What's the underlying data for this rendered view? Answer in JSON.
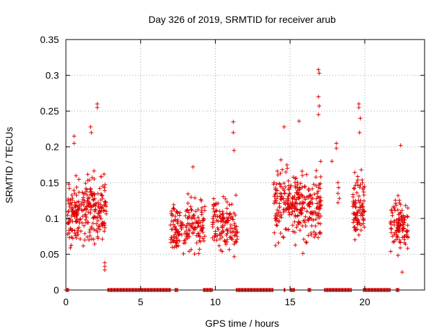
{
  "chart_data": {
    "type": "scatter",
    "title": "Day 326 of 2019, SRMTID for receiver arub",
    "xlabel": "GPS time / hours",
    "ylabel": "SRMTID / TECUs",
    "xlim": [
      0,
      24
    ],
    "ylim": [
      0,
      0.35
    ],
    "x_ticks": [
      0,
      5,
      10,
      15,
      20
    ],
    "x_tick_labels": [
      "0",
      "5",
      "10",
      "15",
      "20"
    ],
    "y_ticks": [
      0,
      0.05,
      0.1,
      0.15,
      0.2,
      0.25,
      0.3,
      0.35
    ],
    "y_tick_labels": [
      "0",
      "0.05",
      "0.1",
      "0.15",
      "0.2",
      "0.25",
      "0.3",
      "0.35"
    ],
    "grid": true,
    "marker": "plus",
    "color": "#e00000",
    "clusters": [
      {
        "x": [
          0.1,
          2.7
        ],
        "y_center": 0.11,
        "y_spread": 0.045,
        "count": 260
      },
      {
        "x": [
          7.0,
          9.3
        ],
        "y_center": 0.09,
        "y_spread": 0.035,
        "count": 170
      },
      {
        "x": [
          9.8,
          11.5
        ],
        "y_center": 0.09,
        "y_spread": 0.035,
        "count": 130
      },
      {
        "x": [
          13.9,
          17.1
        ],
        "y_center": 0.12,
        "y_spread": 0.045,
        "count": 300
      },
      {
        "x": [
          19.2,
          20.0
        ],
        "y_center": 0.12,
        "y_spread": 0.045,
        "count": 90
      },
      {
        "x": [
          21.7,
          22.9
        ],
        "y_center": 0.09,
        "y_spread": 0.035,
        "count": 110
      }
    ],
    "outliers": [
      {
        "x": 2.1,
        "y": 0.26
      },
      {
        "x": 2.1,
        "y": 0.255
      },
      {
        "x": 1.65,
        "y": 0.228
      },
      {
        "x": 1.7,
        "y": 0.22
      },
      {
        "x": 0.55,
        "y": 0.215
      },
      {
        "x": 0.55,
        "y": 0.205
      },
      {
        "x": 2.6,
        "y": 0.038
      },
      {
        "x": 2.6,
        "y": 0.033
      },
      {
        "x": 2.6,
        "y": 0.028
      },
      {
        "x": 8.5,
        "y": 0.172
      },
      {
        "x": 11.2,
        "y": 0.235
      },
      {
        "x": 11.2,
        "y": 0.22
      },
      {
        "x": 11.25,
        "y": 0.195
      },
      {
        "x": 14.6,
        "y": 0.228
      },
      {
        "x": 15.6,
        "y": 0.236
      },
      {
        "x": 16.9,
        "y": 0.308
      },
      {
        "x": 16.95,
        "y": 0.303
      },
      {
        "x": 16.9,
        "y": 0.27
      },
      {
        "x": 16.95,
        "y": 0.257
      },
      {
        "x": 16.9,
        "y": 0.245
      },
      {
        "x": 18.1,
        "y": 0.205
      },
      {
        "x": 18.1,
        "y": 0.198
      },
      {
        "x": 17.8,
        "y": 0.18
      },
      {
        "x": 18.2,
        "y": 0.15
      },
      {
        "x": 18.25,
        "y": 0.143
      },
      {
        "x": 18.2,
        "y": 0.135
      },
      {
        "x": 18.3,
        "y": 0.128
      },
      {
        "x": 18.2,
        "y": 0.122
      },
      {
        "x": 19.6,
        "y": 0.26
      },
      {
        "x": 19.6,
        "y": 0.255
      },
      {
        "x": 19.7,
        "y": 0.24
      },
      {
        "x": 19.65,
        "y": 0.22
      },
      {
        "x": 22.4,
        "y": 0.202
      },
      {
        "x": 22.5,
        "y": 0.025
      }
    ],
    "zero_segments": [
      [
        0,
        0.2
      ],
      [
        2.8,
        7.0
      ],
      [
        7.3,
        7.5
      ],
      [
        9.2,
        9.8
      ],
      [
        11.4,
        13.9
      ],
      [
        14.6,
        14.7
      ],
      [
        15.0,
        15.3
      ],
      [
        16.2,
        16.4
      ],
      [
        17.3,
        19.1
      ],
      [
        19.9,
        21.7
      ],
      [
        22.1,
        22.3
      ]
    ],
    "zero_y": 0
  }
}
